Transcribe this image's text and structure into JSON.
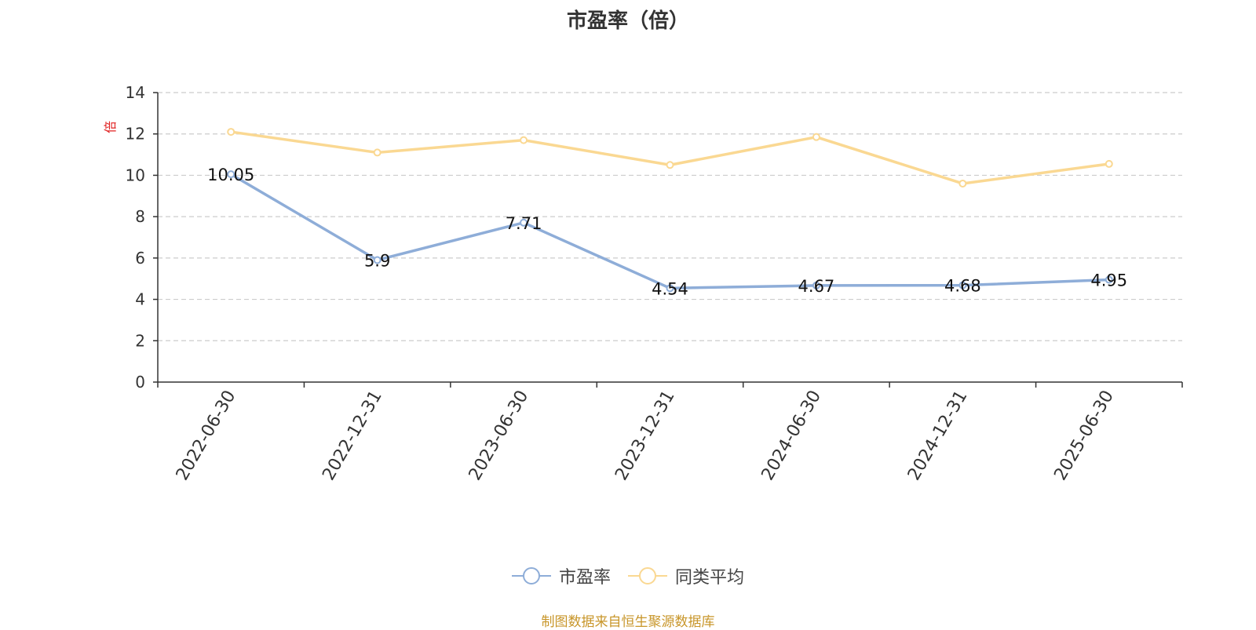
{
  "chart_data": {
    "type": "line",
    "title": "市盈率（倍）",
    "ylabel": "倍",
    "ylim": [
      0,
      14
    ],
    "yticks": [
      0,
      2,
      4,
      6,
      8,
      10,
      12,
      14
    ],
    "grid": true,
    "legend_position": "bottom-center",
    "categories": [
      "2022-06-30",
      "2022-12-31",
      "2023-06-30",
      "2023-12-31",
      "2024-06-30",
      "2024-12-31",
      "2025-06-30"
    ],
    "series": [
      {
        "name": "市盈率",
        "color": "#8eadd8",
        "values": [
          10.05,
          5.9,
          7.71,
          4.54,
          4.67,
          4.68,
          4.95
        ],
        "labels": [
          "10.05",
          "5.9",
          "7.71",
          "4.54",
          "4.67",
          "4.68",
          "4.95"
        ]
      },
      {
        "name": "同类平均",
        "color": "#fad892",
        "values": [
          12.1,
          11.1,
          11.7,
          10.5,
          11.85,
          9.6,
          10.55
        ]
      }
    ]
  },
  "source_note": "制图数据来自恒生聚源数据库"
}
